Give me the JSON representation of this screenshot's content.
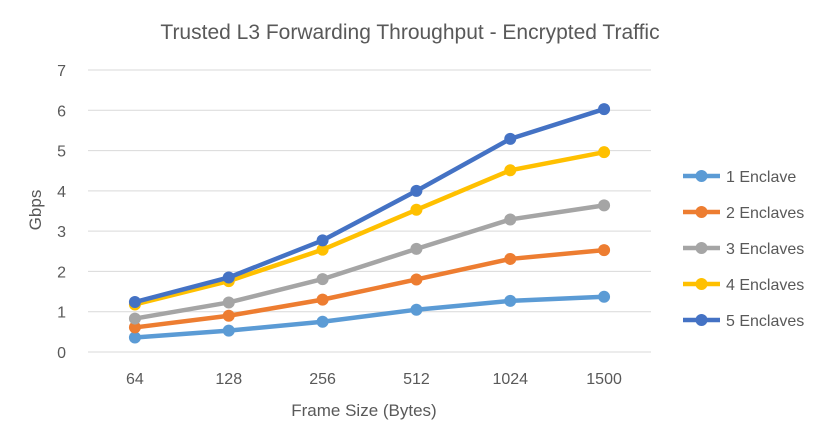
{
  "chart_data": {
    "type": "line",
    "title": "Trusted L3 Forwarding Throughput - Encrypted Traffic",
    "xlabel": "Frame Size (Bytes)",
    "ylabel": "Gbps",
    "categories": [
      "64",
      "128",
      "256",
      "512",
      "1024",
      "1500"
    ],
    "ylim": [
      0,
      7
    ],
    "yticks": [
      0,
      1,
      2,
      3,
      4,
      5,
      6,
      7
    ],
    "grid": true,
    "legend_position": "right",
    "series": [
      {
        "name": "1 Enclave",
        "color": "#5B9BD5",
        "values": [
          0.36,
          0.53,
          0.75,
          1.05,
          1.27,
          1.37
        ]
      },
      {
        "name": "2 Enclaves",
        "color": "#ED7D31",
        "values": [
          0.61,
          0.9,
          1.3,
          1.8,
          2.31,
          2.53
        ]
      },
      {
        "name": "3 Enclaves",
        "color": "#A5A5A5",
        "values": [
          0.83,
          1.23,
          1.81,
          2.56,
          3.29,
          3.64
        ]
      },
      {
        "name": "4 Enclaves",
        "color": "#FFC000",
        "values": [
          1.18,
          1.76,
          2.54,
          3.53,
          4.51,
          4.96
        ]
      },
      {
        "name": "5 Enclaves",
        "color": "#4472C4",
        "values": [
          1.24,
          1.85,
          2.77,
          4.0,
          5.29,
          6.03
        ]
      }
    ]
  }
}
